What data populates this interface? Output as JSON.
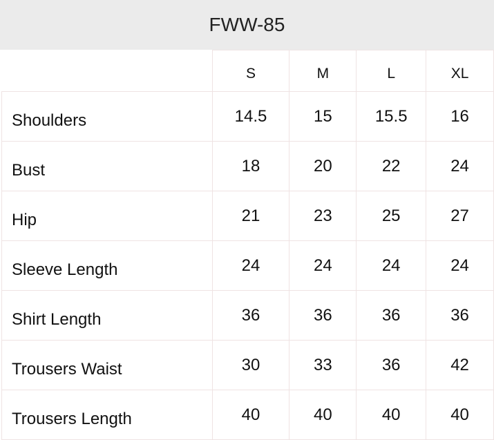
{
  "title": "FWW-85",
  "sizes": [
    "S",
    "M",
    "L",
    "XL"
  ],
  "rows": [
    {
      "label": "Shoulders",
      "values": [
        "14.5",
        "15",
        "15.5",
        "16"
      ]
    },
    {
      "label": "Bust",
      "values": [
        "18",
        "20",
        "22",
        "24"
      ]
    },
    {
      "label": "Hip",
      "values": [
        "21",
        "23",
        "25",
        "27"
      ]
    },
    {
      "label": "Sleeve Length",
      "values": [
        "24",
        "24",
        "24",
        "24"
      ]
    },
    {
      "label": "Shirt Length",
      "values": [
        "36",
        "36",
        "36",
        "36"
      ]
    },
    {
      "label": "Trousers Waist",
      "values": [
        "30",
        "33",
        "36",
        "42"
      ]
    },
    {
      "label": "Trousers Length",
      "values": [
        "40",
        "40",
        "40",
        "40"
      ]
    }
  ]
}
